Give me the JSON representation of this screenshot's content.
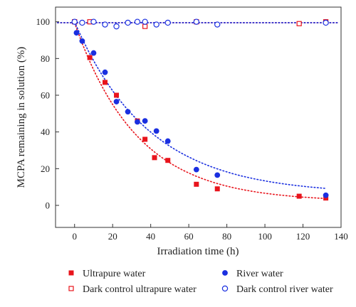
{
  "chart_data": {
    "type": "scatter",
    "xlabel": "Irradiation time (h)",
    "ylabel": "MCPA remaining in solution (%)",
    "xlim": [
      -10,
      140
    ],
    "ylim": [
      -12,
      108
    ],
    "x_ticks": [
      0,
      20,
      40,
      60,
      80,
      100,
      120,
      140
    ],
    "y_ticks": [
      0,
      20,
      40,
      60,
      80,
      100
    ],
    "grid": false,
    "legend_position": "bottom",
    "series": [
      {
        "name": "Ultrapure water",
        "marker": "square-filled",
        "color": "#e8141c",
        "x": [
          0,
          8,
          16,
          22,
          33,
          37,
          42,
          49,
          64,
          75,
          118,
          132
        ],
        "y": [
          100,
          80.5,
          67,
          60,
          46,
          36,
          26,
          24.5,
          11.5,
          9,
          5,
          4
        ]
      },
      {
        "name": "River water",
        "marker": "circle-filled",
        "color": "#1a2fe0",
        "x": [
          0,
          1,
          4,
          10,
          16,
          22,
          28,
          33,
          37,
          43,
          49,
          64,
          75,
          132
        ],
        "y": [
          100,
          94,
          89.5,
          83,
          72.5,
          56.5,
          51,
          45.5,
          46,
          40.5,
          35,
          19.5,
          16.5,
          5.5
        ]
      },
      {
        "name": "Dark control ultrapure water",
        "marker": "square-open",
        "color": "#e8141c",
        "x": [
          0,
          8,
          37,
          64,
          118,
          132
        ],
        "y": [
          100,
          100,
          97.5,
          100,
          99,
          100
        ]
      },
      {
        "name": "Dark control river water",
        "marker": "circle-open",
        "color": "#1a2fe0",
        "x": [
          0,
          4,
          10,
          16,
          22,
          28,
          33,
          37,
          43,
          49,
          64,
          75,
          132
        ],
        "y": [
          100,
          99.5,
          100,
          98.5,
          97.5,
          99.5,
          100,
          100,
          98.5,
          99.5,
          100,
          98.5,
          99.5
        ]
      }
    ],
    "fits": [
      {
        "series": "Ultrapure water",
        "type": "exponential-decay",
        "color": "#e8141c",
        "style": "dotted",
        "A": 97.5,
        "k": 0.0305,
        "c": 2
      },
      {
        "series": "River water",
        "type": "exponential-decay",
        "color": "#1a2fe0",
        "style": "dotted",
        "A": 94,
        "k": 0.0255,
        "c": 6
      },
      {
        "series": "Dark control",
        "type": "constant",
        "color": "#e8141c",
        "style": "dotted",
        "y": 99.5
      },
      {
        "series": "Dark control",
        "type": "constant",
        "color": "#1a2fe0",
        "style": "dotted",
        "y": 99.5
      }
    ]
  }
}
